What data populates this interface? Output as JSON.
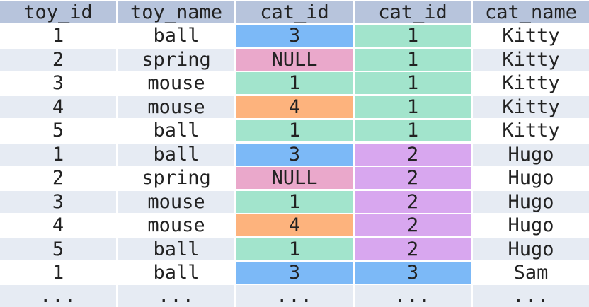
{
  "chart_data": {
    "type": "table",
    "columns": [
      "toy_id",
      "toy_name",
      "cat_id",
      "cat_id",
      "cat_name"
    ],
    "rows": [
      [
        "1",
        "ball",
        "3",
        "1",
        "Kitty"
      ],
      [
        "2",
        "spring",
        "NULL",
        "1",
        "Kitty"
      ],
      [
        "3",
        "mouse",
        "1",
        "1",
        "Kitty"
      ],
      [
        "4",
        "mouse",
        "4",
        "1",
        "Kitty"
      ],
      [
        "5",
        "ball",
        "1",
        "1",
        "Kitty"
      ],
      [
        "1",
        "ball",
        "3",
        "2",
        "Hugo"
      ],
      [
        "2",
        "spring",
        "NULL",
        "2",
        "Hugo"
      ],
      [
        "3",
        "mouse",
        "1",
        "2",
        "Hugo"
      ],
      [
        "4",
        "mouse",
        "4",
        "2",
        "Hugo"
      ],
      [
        "5",
        "ball",
        "1",
        "2",
        "Hugo"
      ],
      [
        "1",
        "ball",
        "3",
        "3",
        "Sam"
      ],
      [
        "...",
        "...",
        "...",
        "...",
        "..."
      ]
    ],
    "colors": {
      "header_bg": "#b7c4dc",
      "row_alt_bg": "#e6ebf3",
      "row_bg": "#ffffff",
      "toy_cat_id": {
        "1": "#a2e4cc",
        "3": "#7cb9f7",
        "4": "#fdb37d",
        "NULL": "#eaa8cb"
      },
      "cat_cat_id": {
        "1": "#a2e4cc",
        "2": "#d8a7ef",
        "3": "#7cb9f7"
      }
    }
  }
}
